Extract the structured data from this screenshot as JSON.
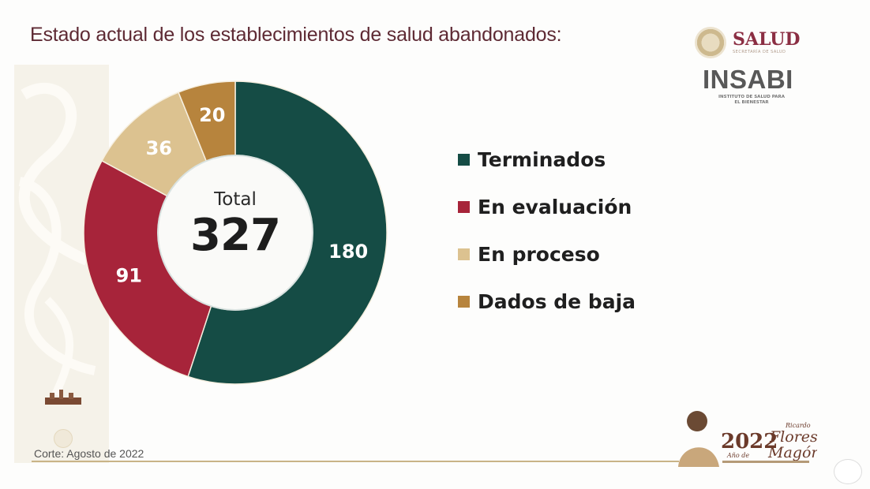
{
  "title": "Estado actual de los establecimientos de salud abandonados:",
  "logos": {
    "salud": "SALUD",
    "salud_sub": "SECRETARÍA DE SALUD",
    "insabi": "INSABI",
    "insabi_sub_line1": "INSTITUTO DE SALUD PARA",
    "insabi_sub_line2": "EL BIENESTAR"
  },
  "center": {
    "label": "Total",
    "value": "327"
  },
  "legend": [
    {
      "label": "Terminados",
      "color": "#154c45"
    },
    {
      "label": "En evaluación",
      "color": "#a7243a"
    },
    {
      "label": "En proceso",
      "color": "#dcc290"
    },
    {
      "label": "Dados de baja",
      "color": "#b7843d"
    }
  ],
  "footer": {
    "note": "Corte: Agosto de 2022",
    "badge_year": "2022",
    "badge_sub": "Año de",
    "badge_name1": "Ricardo",
    "badge_name2": "Flores",
    "badge_name3": "Magón"
  },
  "chart_data": {
    "type": "pie",
    "variant": "donut",
    "title": "Estado actual de los establecimientos de salud abandonados:",
    "categories": [
      "Terminados",
      "En evaluación",
      "En proceso",
      "Dados de baja"
    ],
    "values": [
      180,
      91,
      36,
      20
    ],
    "colors": [
      "#154c45",
      "#a7243a",
      "#dcc290",
      "#b7843d"
    ],
    "total": 327,
    "center_label": "Total 327",
    "start_angle": "12 o'clock, clockwise",
    "legend_position": "right",
    "annotation": "Corte: Agosto de 2022"
  }
}
